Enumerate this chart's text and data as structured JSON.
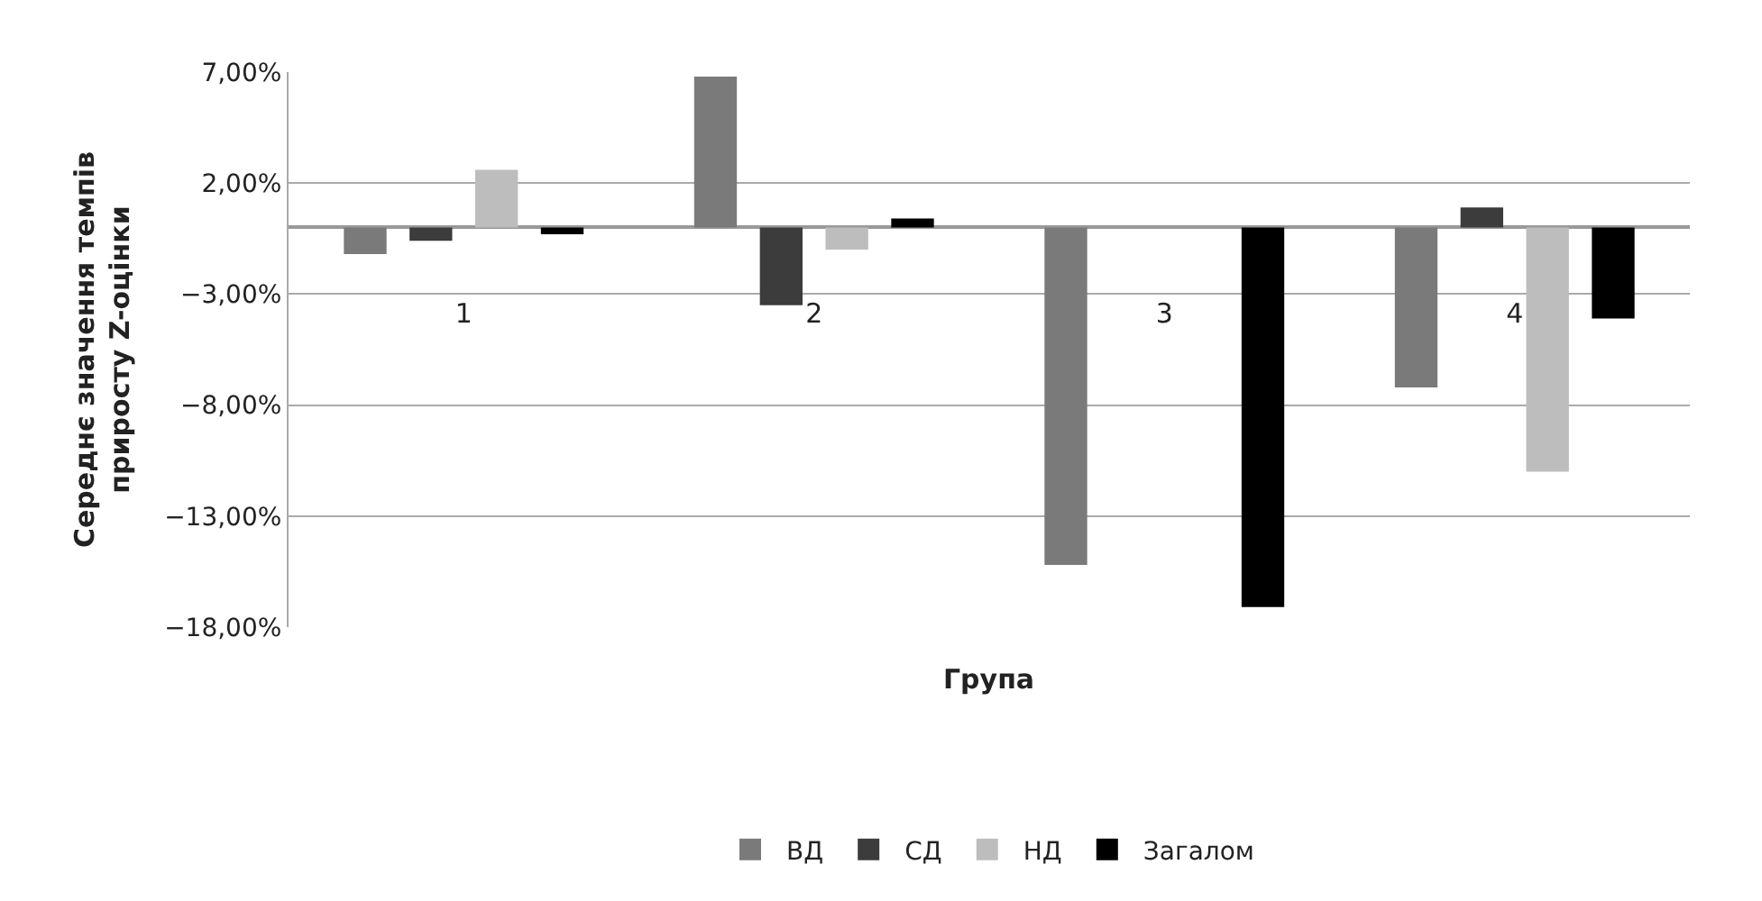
{
  "chart_data": {
    "type": "bar",
    "xlabel": "Група",
    "ylabel": "Середнє значення темпів приросту Z-оцінки",
    "categories": [
      "1",
      "2",
      "3",
      "4"
    ],
    "series": [
      {
        "name": "ВД",
        "color": "#7a7a7a",
        "values": [
          -1.2,
          6.8,
          -15.2,
          -7.2
        ]
      },
      {
        "name": "СД",
        "color": "#3c3c3c",
        "values": [
          -0.6,
          -3.5,
          null,
          0.9
        ]
      },
      {
        "name": "НД",
        "color": "#bdbdbd",
        "values": [
          2.6,
          -1.0,
          null,
          -11.0
        ]
      },
      {
        "name": "Загалом",
        "color": "#000000",
        "values": [
          -0.3,
          0.4,
          -17.1,
          -4.1
        ]
      }
    ],
    "ylim": [
      -18,
      7
    ],
    "yticks": [
      {
        "value": 7,
        "label": "7,00%"
      },
      {
        "value": 2,
        "label": "2,00%"
      },
      {
        "value": -3,
        "label": "−3,00%"
      },
      {
        "value": -8,
        "label": "−8,00%"
      },
      {
        "value": -13,
        "label": "−13,00%"
      },
      {
        "value": -18,
        "label": "−18,00%"
      }
    ],
    "grid": "y",
    "legend": "bottom"
  }
}
